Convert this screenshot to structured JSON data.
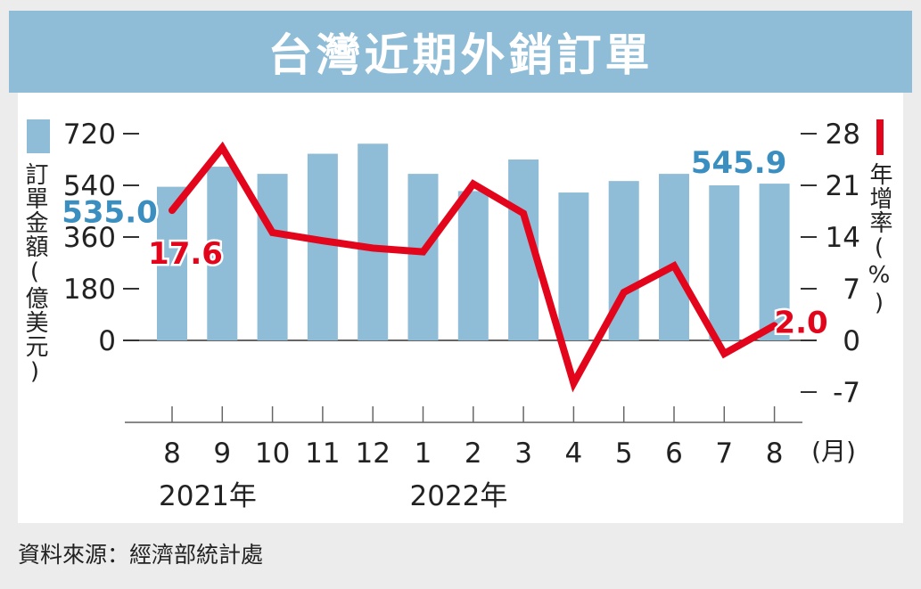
{
  "title": "台灣近期外銷訂單",
  "source": "資料來源：經濟部統計處",
  "colors": {
    "bar": "#8fbcd6",
    "line": "#e3051b",
    "bar_label": "#3a8fc0",
    "axis": "#333333"
  },
  "chart_data": {
    "type": "bar",
    "categories": [
      "8",
      "9",
      "10",
      "11",
      "12",
      "1",
      "2",
      "3",
      "4",
      "5",
      "6",
      "7",
      "8"
    ],
    "years": [
      {
        "label": "2021年",
        "start": 0
      },
      {
        "label": "2022年",
        "start": 5
      }
    ],
    "x_unit": "(月)",
    "y_left": {
      "label": "訂單金額(億美元)",
      "ticks": [
        "720",
        "540",
        "360",
        "180",
        "0"
      ],
      "range": [
        0,
        720
      ]
    },
    "y_right": {
      "label": "年增率(%)",
      "ticks": [
        "28",
        "21",
        "14",
        "7",
        "0",
        "-7"
      ],
      "range": [
        -7,
        28
      ]
    },
    "series": [
      {
        "name": "訂單金額(億美元)",
        "type": "bar",
        "axis": "left",
        "values": [
          535.0,
          605,
          580,
          650,
          685,
          580,
          520,
          630,
          515,
          555,
          580,
          540,
          545.9
        ]
      },
      {
        "name": "年增率(%)",
        "type": "line",
        "axis": "right",
        "values": [
          17.6,
          26.1,
          14.6,
          13.5,
          12.5,
          12.0,
          21.2,
          17.2,
          -5.8,
          6.5,
          10.1,
          -1.8,
          2.0
        ]
      }
    ],
    "annotations": [
      {
        "series": 0,
        "index": 0,
        "text": "535.0"
      },
      {
        "series": 0,
        "index": 12,
        "text": "545.9"
      },
      {
        "series": 1,
        "index": 0,
        "text": "17.6"
      },
      {
        "series": 1,
        "index": 12,
        "text": "2.0"
      }
    ],
    "grid": false
  }
}
